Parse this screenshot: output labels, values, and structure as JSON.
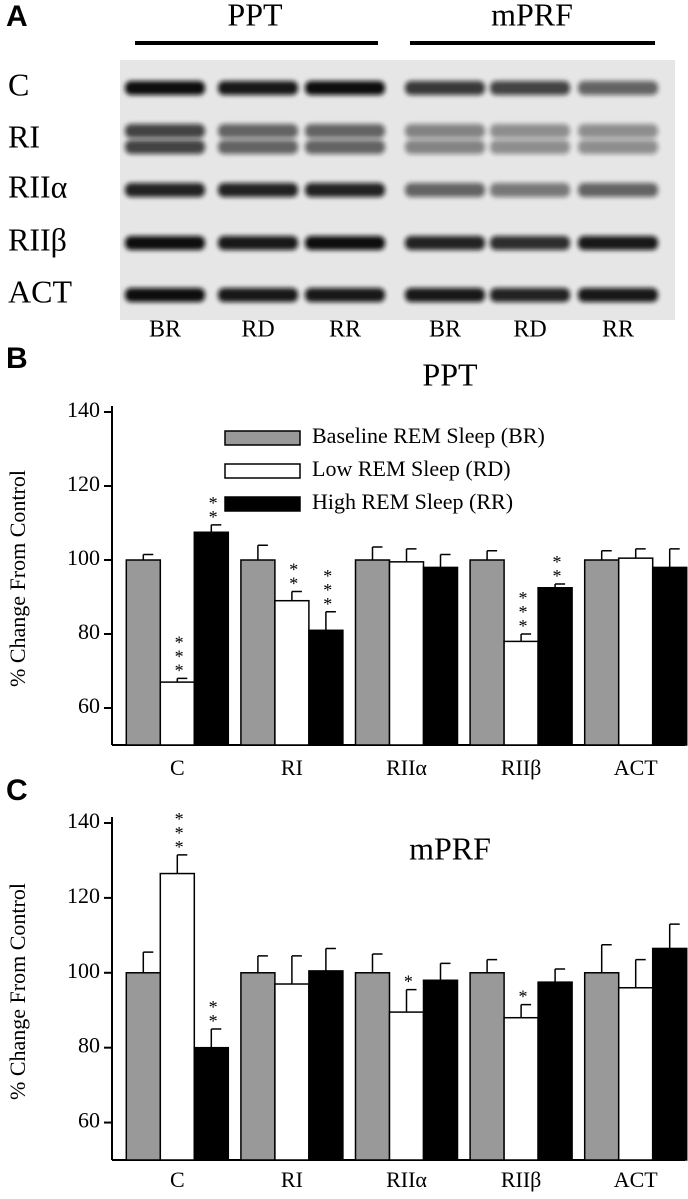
{
  "blot": {
    "panel": "A",
    "groups": [
      "PPT",
      "mPRF"
    ],
    "rows": [
      "C",
      "RI",
      "RIIα",
      "RIIβ",
      "ACT"
    ],
    "lanes": [
      "BR",
      "RD",
      "RR",
      "BR",
      "RD",
      "RR"
    ]
  },
  "chart_data": [
    {
      "type": "bar",
      "panel": "B",
      "title": "PPT",
      "y_label": "% Change From Control",
      "categories": [
        "C",
        "RI",
        "RIIα",
        "RIIβ",
        "ACT"
      ],
      "ylim": [
        50,
        140
      ],
      "yticks": [
        60,
        80,
        100,
        120,
        140
      ],
      "legend": true,
      "series": [
        {
          "name": "Baseline REM Sleep (BR)",
          "color": "#999999",
          "values": [
            100,
            100,
            100,
            100,
            100
          ],
          "errors": [
            1.5,
            4,
            3.5,
            2.5,
            2.5
          ],
          "significance": [
            null,
            null,
            null,
            null,
            null
          ]
        },
        {
          "name": "Low REM Sleep (RD)",
          "color": "#ffffff",
          "values": [
            67,
            89,
            99.5,
            78,
            100.5
          ],
          "errors": [
            1,
            2.5,
            3.5,
            2,
            2.5
          ],
          "significance": [
            "***",
            "**",
            null,
            "***",
            null
          ]
        },
        {
          "name": "High REM Sleep (RR)",
          "color": "#000000",
          "values": [
            107.5,
            81,
            98,
            92.5,
            98
          ],
          "errors": [
            2,
            5,
            3.5,
            1,
            5
          ],
          "significance": [
            "**",
            "***",
            null,
            "**",
            null
          ]
        }
      ]
    },
    {
      "type": "bar",
      "panel": "C",
      "title": "mPRF",
      "y_label": "% Change From Control",
      "categories": [
        "C",
        "RI",
        "RIIα",
        "RIIβ",
        "ACT"
      ],
      "ylim": [
        50,
        140
      ],
      "yticks": [
        60,
        80,
        100,
        120,
        140
      ],
      "legend": false,
      "series": [
        {
          "color": "#999999",
          "values": [
            100,
            100,
            100,
            100,
            100
          ],
          "errors": [
            5.5,
            4.5,
            5,
            3.5,
            7.5
          ],
          "significance": [
            null,
            null,
            null,
            null,
            null
          ]
        },
        {
          "color": "#ffffff",
          "values": [
            126.5,
            97,
            89.5,
            88,
            96
          ],
          "errors": [
            5,
            7.5,
            6,
            3.5,
            7.5
          ],
          "significance": [
            "***",
            null,
            "*",
            "*",
            null
          ]
        },
        {
          "color": "#000000",
          "values": [
            80,
            100.5,
            98,
            97.5,
            106.5
          ],
          "errors": [
            5,
            6,
            4.5,
            3.5,
            6.5
          ],
          "significance": [
            "**",
            null,
            null,
            null,
            null
          ]
        }
      ]
    }
  ]
}
